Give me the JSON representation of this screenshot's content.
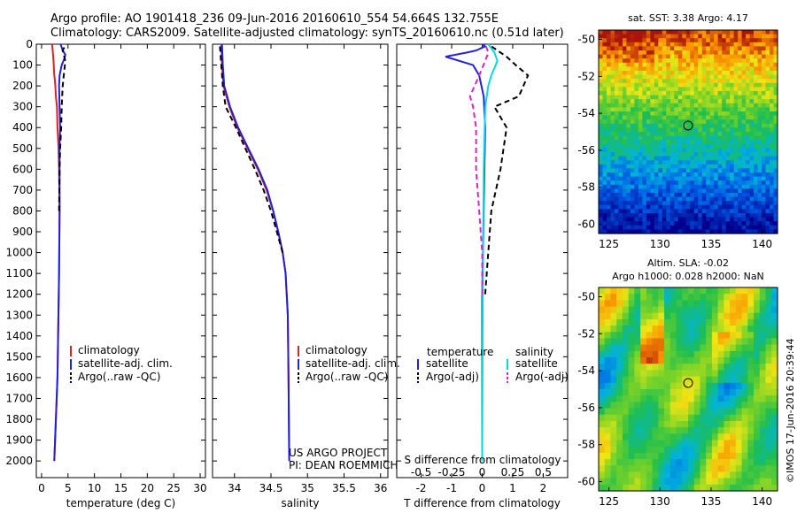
{
  "header": {
    "line1": "Argo profile: AO 1901418_236 09-Jun-2016 20160610_554 54.664S 132.755E",
    "line2": "Climatology: CARS2009. Satellite-adjusted climatology: synTS_20160610.nc (0.51d later)"
  },
  "watermark": "©IMOS 17-Jun-2016 20:39:44",
  "chart_data": [
    {
      "id": "temperature",
      "type": "line",
      "xlabel": "temperature (deg C)",
      "xlim": [
        -1,
        31
      ],
      "xticks": [
        0,
        5,
        10,
        15,
        20,
        25,
        30
      ],
      "ylim": [
        2080,
        0
      ],
      "yticks": [
        0,
        100,
        200,
        300,
        400,
        500,
        600,
        700,
        800,
        900,
        1000,
        1100,
        1200,
        1300,
        1400,
        1500,
        1600,
        1700,
        1800,
        1900,
        2000
      ],
      "grid": false,
      "legend": [
        "climatology",
        "satellite-adj. clim.",
        "Argo(..raw -QC)"
      ],
      "series": [
        {
          "name": "climatology",
          "color": "#e02020",
          "dash": "",
          "x": [
            2.4,
            3.0,
            3.3,
            3.4,
            3.3,
            3.2,
            3.0,
            2.9,
            2.7,
            2.6,
            2.5,
            2.4,
            2.3,
            2.2,
            2.1,
            2.0
          ],
          "y": [
            2000,
            1600,
            1100,
            800,
            600,
            500,
            400,
            300,
            250,
            200,
            170,
            150,
            100,
            60,
            30,
            0
          ]
        },
        {
          "name": "satellite-adj. clim.",
          "color": "#2020e0",
          "dash": "",
          "x": [
            2.4,
            3.0,
            3.3,
            3.4,
            3.4,
            3.4,
            3.5,
            3.4,
            3.3,
            3.4,
            3.8,
            4.3,
            4.5,
            4.0,
            3.6
          ],
          "y": [
            2000,
            1600,
            1100,
            800,
            600,
            500,
            400,
            300,
            200,
            150,
            100,
            70,
            50,
            30,
            0
          ]
        },
        {
          "name": "Argo(..raw -QC)",
          "color": "#000000",
          "dash": "6,4",
          "x": [
            3.3,
            3.4,
            3.5,
            3.7,
            3.8,
            3.9,
            4.0,
            4.2,
            4.5,
            4.3,
            4.0,
            4.4
          ],
          "y": [
            800,
            600,
            500,
            400,
            300,
            250,
            200,
            150,
            80,
            60,
            30,
            10
          ]
        }
      ]
    },
    {
      "id": "salinity",
      "type": "line",
      "xlabel": "salinity",
      "xlim": [
        33.7,
        36.1
      ],
      "xticks": [
        34,
        34.5,
        35,
        35.5,
        36
      ],
      "ylim": [
        2080,
        0
      ],
      "grid": false,
      "legend": [
        "climatology",
        "satellite-adj. clim.",
        "Argo(..raw -QC)"
      ],
      "annotation": [
        "US ARGO PROJECT",
        "PI: DEAN ROEMMICH"
      ],
      "series": [
        {
          "name": "climatology",
          "color": "#e02020",
          "dash": "",
          "x": [
            34.75,
            34.74,
            34.73,
            34.7,
            34.66,
            34.6,
            34.53,
            34.44,
            34.32,
            34.18,
            34.04,
            33.93,
            33.85,
            33.83,
            33.82
          ],
          "y": [
            2000,
            1600,
            1300,
            1100,
            1000,
            900,
            800,
            700,
            600,
            500,
            400,
            300,
            200,
            100,
            0
          ]
        },
        {
          "name": "satellite-adj. clim.",
          "color": "#2020e0",
          "dash": "",
          "x": [
            34.75,
            34.74,
            34.73,
            34.7,
            34.66,
            34.6,
            34.53,
            34.45,
            34.33,
            34.19,
            34.05,
            33.94,
            33.86,
            33.84,
            33.83
          ],
          "y": [
            2000,
            1600,
            1300,
            1100,
            1000,
            900,
            800,
            700,
            600,
            500,
            400,
            300,
            200,
            100,
            0
          ]
        },
        {
          "name": "Argo(..raw -QC)",
          "color": "#000000",
          "dash": "6,4",
          "x": [
            34.66,
            34.58,
            34.5,
            34.4,
            34.28,
            34.15,
            34.02,
            33.88,
            33.84,
            33.82,
            33.8
          ],
          "y": [
            1000,
            900,
            800,
            700,
            600,
            500,
            400,
            300,
            200,
            100,
            0
          ]
        }
      ]
    },
    {
      "id": "difference",
      "type": "line",
      "xlabel": "T difference from climatology",
      "x2label": "S difference from climatology",
      "xlim": [
        -2.8,
        2.8
      ],
      "xticks": [
        -2,
        -1,
        0,
        1,
        2
      ],
      "x2ticks": [
        "-0.5",
        "-0.25",
        "0",
        "0.25",
        "0.5"
      ],
      "x2tick_pos": [
        -2,
        -1,
        0,
        1,
        2
      ],
      "ylim": [
        2080,
        0
      ],
      "grid": false,
      "legend_left_title": "temperature",
      "legend_right_title": "salinity",
      "legend_left": [
        "satellite",
        "Argo(-adj)"
      ],
      "legend_right": [
        "satellite",
        "Argo(-adj)"
      ],
      "series": [
        {
          "name": "T satellite",
          "color": "#2020e0",
          "dash": "",
          "x": [
            0,
            0,
            0.05,
            0.1,
            0.05,
            -0.1,
            -0.3,
            -1.2,
            -0.5,
            -0.2,
            0.1,
            0
          ],
          "y": [
            2000,
            1200,
            800,
            400,
            250,
            150,
            100,
            60,
            40,
            30,
            10,
            0
          ]
        },
        {
          "name": "T Argo(-adj)",
          "color": "#000000",
          "dash": "6,4",
          "x": [
            0.1,
            0.3,
            0.6,
            0.8,
            0.4,
            1.2,
            1.5,
            1.1,
            0.8,
            0.5,
            0.2
          ],
          "y": [
            1200,
            800,
            600,
            400,
            300,
            250,
            150,
            100,
            60,
            30,
            0
          ]
        },
        {
          "name": "S satellite",
          "color": "#00dddd",
          "dash": "",
          "x": [
            0,
            0.02,
            0.05,
            0.1,
            0.2,
            0.3,
            0.5,
            0.4,
            0.2
          ],
          "y": [
            2000,
            1200,
            600,
            300,
            200,
            150,
            80,
            40,
            0
          ]
        },
        {
          "name": "S Argo(-adj)",
          "color": "#e020d0",
          "dash": "6,4",
          "x": [
            0,
            0,
            -0.1,
            -0.2,
            -0.2,
            -0.3,
            -0.4,
            -0.1,
            0.1,
            0.2,
            0.1
          ],
          "y": [
            1200,
            1000,
            800,
            600,
            400,
            300,
            250,
            150,
            80,
            40,
            0
          ]
        }
      ]
    },
    {
      "id": "sst-map",
      "type": "heatmap",
      "title": "sat. SST: 3.38 Argo: 4.17",
      "xlim": [
        124,
        141.5
      ],
      "ylim": [
        -60.5,
        -49.5
      ],
      "xticks": [
        125,
        130,
        135,
        140
      ],
      "yticks": [
        -50,
        -52,
        -54,
        -56,
        -58,
        -60
      ],
      "marker": {
        "lon": 132.755,
        "lat": -54.664
      }
    },
    {
      "id": "sla-map",
      "type": "heatmap",
      "title": "Altim. SLA: -0.02",
      "subtitle": "Argo h1000: 0.028 h2000: NaN",
      "xlim": [
        124,
        141.5
      ],
      "ylim": [
        -60.5,
        -49.5
      ],
      "xticks": [
        125,
        130,
        135,
        140
      ],
      "yticks": [
        -50,
        -52,
        -54,
        -56,
        -58,
        -60
      ],
      "marker": {
        "lon": 132.755,
        "lat": -54.664
      }
    }
  ]
}
